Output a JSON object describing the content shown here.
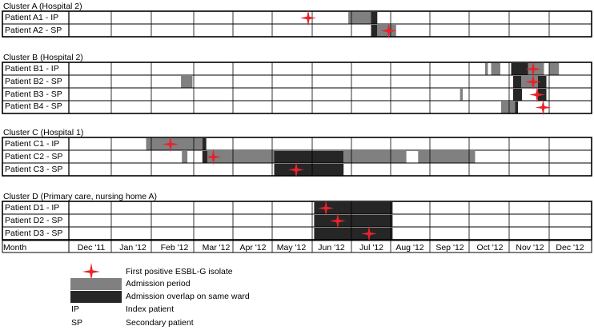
{
  "months": [
    "Dec '11",
    "Jan '12",
    "Feb '12",
    "Mar '12",
    "Apr '12",
    "May '12",
    "Jun '12",
    "Jul '12",
    "Aug '12",
    "Sep '12",
    "Oct '12",
    "Nov '12",
    "Dec '12"
  ],
  "month_axis_label": "Month",
  "colors": {
    "admission": "#808080",
    "overlap": "#262626",
    "star": "#e8232a",
    "grid": "#000000"
  },
  "chart_data": {
    "type": "timeline",
    "clusters": [
      {
        "title": "Cluster A (Hospital 2)",
        "patients": [
          {
            "label": "Patient A1 - IP",
            "periods": [
              {
                "start": 7.92,
                "end": 8.5,
                "type": "admission"
              },
              {
                "start": 8.5,
                "end": 8.66,
                "type": "overlap"
              }
            ],
            "first_positive": 6.9
          },
          {
            "label": "Patient A2 - SP",
            "periods": [
              {
                "start": 8.5,
                "end": 8.66,
                "type": "overlap"
              },
              {
                "start": 8.66,
                "end": 9.14,
                "type": "admission"
              }
            ],
            "first_positive": 8.95
          }
        ]
      },
      {
        "title": "Cluster B (Hospital 2)",
        "patients": [
          {
            "label": "Patient B1 - IP",
            "periods": [
              {
                "start": 11.4,
                "end": 11.47,
                "type": "admission"
              },
              {
                "start": 11.55,
                "end": 11.78,
                "type": "admission"
              },
              {
                "start": 12.05,
                "end": 12.47,
                "type": "overlap"
              },
              {
                "start": 12.47,
                "end": 12.87,
                "type": "admission"
              },
              {
                "start": 13.0,
                "end": 13.23,
                "type": "admission"
              }
            ],
            "first_positive": 12.6
          },
          {
            "label": "Patient B2 - SP",
            "periods": [
              {
                "start": 3.7,
                "end": 3.97,
                "type": "admission"
              },
              {
                "start": 12.1,
                "end": 12.3,
                "type": "overlap"
              },
              {
                "start": 12.3,
                "end": 12.72,
                "type": "admission"
              },
              {
                "start": 12.72,
                "end": 12.93,
                "type": "overlap"
              }
            ],
            "first_positive": 12.6
          },
          {
            "label": "Patient B3 - SP",
            "periods": [
              {
                "start": 10.77,
                "end": 10.84,
                "type": "admission"
              },
              {
                "start": 12.1,
                "end": 12.32,
                "type": "overlap"
              },
              {
                "start": 12.72,
                "end": 12.93,
                "type": "overlap"
              }
            ],
            "first_positive": 12.7
          },
          {
            "label": "Patient B4 - SP",
            "periods": [
              {
                "start": 11.8,
                "end": 12.15,
                "type": "admission"
              },
              {
                "start": 12.15,
                "end": 12.22,
                "type": "overlap"
              }
            ],
            "first_positive": 12.85
          }
        ]
      },
      {
        "title": "Cluster C (Hospital 1)",
        "patients": [
          {
            "label": "Patient C1 - IP",
            "periods": [
              {
                "start": 2.87,
                "end": 4.22,
                "type": "admission"
              },
              {
                "start": 4.22,
                "end": 4.32,
                "type": "overlap"
              }
            ],
            "first_positive": 3.45
          },
          {
            "label": "Patient C2 - SP",
            "periods": [
              {
                "start": 3.72,
                "end": 3.85,
                "type": "admission"
              },
              {
                "start": 4.22,
                "end": 4.35,
                "type": "overlap"
              },
              {
                "start": 4.35,
                "end": 6.05,
                "type": "admission"
              },
              {
                "start": 6.05,
                "end": 7.8,
                "type": "overlap"
              },
              {
                "start": 7.8,
                "end": 9.4,
                "type": "admission"
              },
              {
                "start": 9.7,
                "end": 11.15,
                "type": "admission"
              }
            ],
            "first_positive": 4.5
          },
          {
            "label": "Patient C3 - SP",
            "periods": [
              {
                "start": 6.05,
                "end": 7.8,
                "type": "overlap"
              }
            ],
            "first_positive": 6.6
          }
        ]
      },
      {
        "title": "Cluster D (Primary care, nursing home A)",
        "patients": [
          {
            "label": "Patient D1 - IP",
            "periods": [
              {
                "start": 7.05,
                "end": 9.05,
                "type": "overlap"
              }
            ],
            "first_positive": 7.35
          },
          {
            "label": "Patient D2 - SP",
            "periods": [
              {
                "start": 7.05,
                "end": 9.05,
                "type": "overlap"
              }
            ],
            "first_positive": 7.65
          },
          {
            "label": "Patient D3 - SP",
            "periods": [
              {
                "start": 7.05,
                "end": 9.05,
                "type": "overlap"
              }
            ],
            "first_positive": 8.45
          }
        ]
      }
    ]
  },
  "legend": {
    "star_label": "First positive ESBL-G isolate",
    "admission_label": "Admission period",
    "overlap_label": "Admission overlap on same ward",
    "ip_abbr": "IP",
    "ip_label": "Index patient",
    "sp_abbr": "SP",
    "sp_label": "Secondary patient"
  }
}
